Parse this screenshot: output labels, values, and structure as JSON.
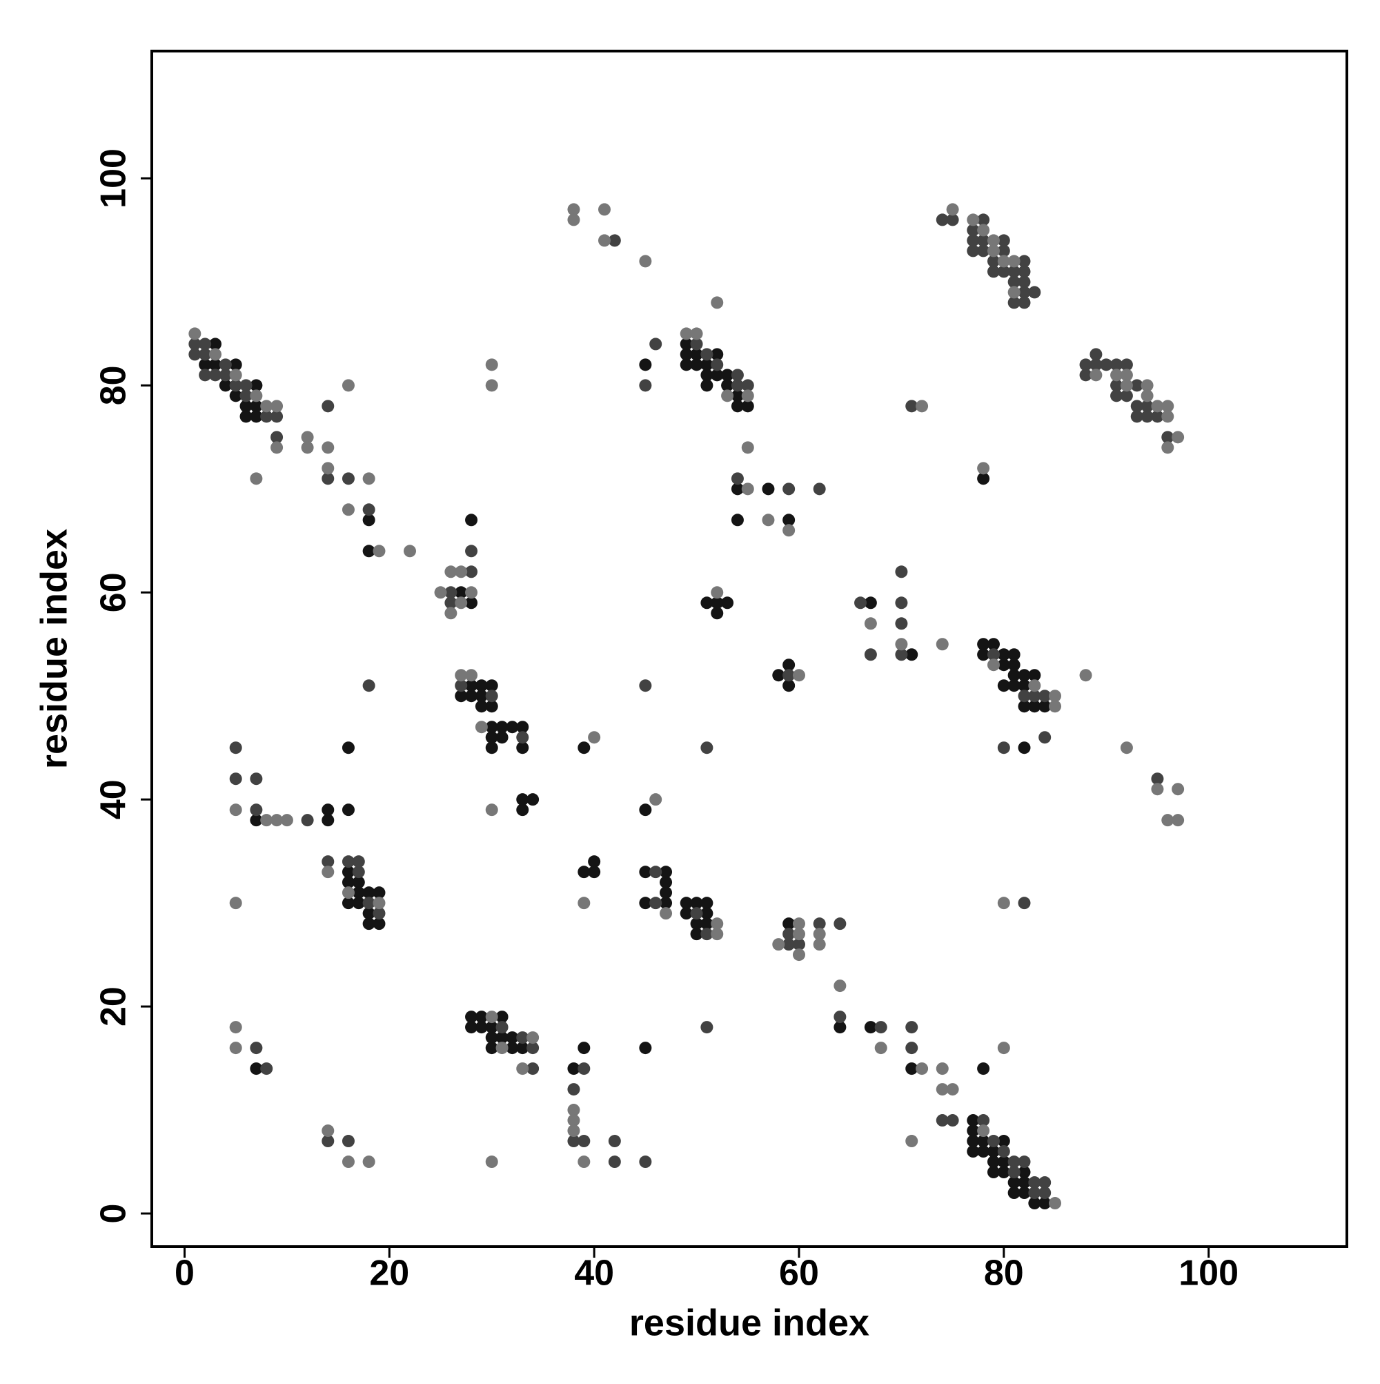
{
  "chart_data": {
    "type": "scatter",
    "x_label": "residue index",
    "y_label": "residue index",
    "xlim": [
      -3.2,
      113.5
    ],
    "ylim": [
      -3.2,
      112.3
    ],
    "xticks": [
      0,
      20,
      40,
      60,
      80,
      100
    ],
    "yticks": [
      0,
      20,
      40,
      60,
      80,
      100
    ],
    "grid": false,
    "series": [
      {
        "color": "#141414",
        "x": [
          2,
          3,
          3,
          4,
          5,
          5,
          6,
          6,
          7,
          7,
          7,
          18,
          18,
          27,
          28,
          28,
          27,
          28,
          28,
          29,
          29,
          29,
          30,
          30,
          30,
          30,
          30,
          31,
          31,
          32,
          33,
          33,
          33,
          33,
          34,
          7,
          14,
          14,
          16,
          16,
          16,
          16,
          16,
          17,
          17,
          17,
          18,
          18,
          18,
          19,
          19,
          7,
          28,
          28,
          29,
          29,
          30,
          30,
          30,
          31,
          31,
          32,
          32,
          33,
          38,
          39,
          45,
          39,
          39,
          40,
          40,
          45,
          45,
          45,
          47,
          47,
          47,
          47,
          49,
          49,
          50,
          50,
          50,
          51,
          51,
          51,
          59,
          64,
          67,
          71,
          78,
          77,
          77,
          77,
          77,
          78,
          78,
          79,
          79,
          79,
          80,
          80,
          80,
          81,
          81,
          82,
          82,
          82,
          83,
          84,
          45,
          49,
          49,
          49,
          50,
          50,
          51,
          51,
          51,
          52,
          52,
          53,
          53,
          54,
          54,
          55,
          54,
          54,
          57,
          59,
          51,
          52,
          52,
          53,
          58,
          59,
          59,
          67,
          71,
          78,
          78,
          78,
          79,
          80,
          80,
          80,
          81,
          81,
          81,
          81,
          82,
          82,
          82,
          83,
          83,
          84,
          82
        ],
        "y": [
          82,
          84,
          82,
          80,
          82,
          79,
          78,
          77,
          80,
          78,
          77,
          67,
          64,
          60,
          67,
          59,
          50,
          51,
          50,
          51,
          50,
          49,
          51,
          49,
          47,
          46,
          45,
          47,
          46,
          47,
          47,
          45,
          40,
          39,
          40,
          38,
          39,
          38,
          45,
          39,
          33,
          32,
          30,
          32,
          31,
          30,
          31,
          29,
          28,
          31,
          28,
          14,
          19,
          18,
          19,
          18,
          18,
          17,
          16,
          19,
          17,
          17,
          16,
          16,
          14,
          16,
          16,
          45,
          33,
          34,
          33,
          39,
          33,
          30,
          33,
          32,
          31,
          30,
          30,
          29,
          30,
          28,
          27,
          30,
          29,
          28,
          28,
          18,
          18,
          14,
          14,
          9,
          8,
          7,
          6,
          7,
          6,
          6,
          5,
          4,
          7,
          5,
          4,
          3,
          2,
          4,
          3,
          2,
          1,
          1,
          82,
          84,
          83,
          82,
          83,
          82,
          82,
          81,
          80,
          83,
          81,
          81,
          80,
          79,
          78,
          78,
          70,
          67,
          70,
          67,
          59,
          59,
          58,
          59,
          52,
          53,
          51,
          59,
          54,
          71,
          55,
          54,
          55,
          54,
          53,
          51,
          54,
          53,
          52,
          51,
          52,
          51,
          49,
          52,
          49,
          49,
          45
        ]
      },
      {
        "color": "#424242",
        "x": [
          1,
          1,
          2,
          2,
          2,
          3,
          4,
          4,
          5,
          6,
          6,
          8,
          9,
          9,
          14,
          14,
          16,
          18,
          26,
          26,
          28,
          28,
          27,
          30,
          33,
          18,
          5,
          5,
          7,
          7,
          12,
          14,
          16,
          17,
          17,
          18,
          19,
          7,
          8,
          14,
          16,
          31,
          33,
          34,
          34,
          38,
          38,
          39,
          39,
          42,
          42,
          45,
          45,
          46,
          46,
          50,
          51,
          51,
          51,
          59,
          59,
          60,
          62,
          64,
          64,
          68,
          71,
          71,
          74,
          75,
          78,
          79,
          80,
          81,
          81,
          82,
          83,
          83,
          84,
          84,
          82,
          46,
          45,
          50,
          51,
          52,
          54,
          54,
          55,
          54,
          59,
          62,
          59,
          66,
          67,
          70,
          70,
          70,
          70,
          71,
          79,
          82,
          83,
          84,
          84,
          80,
          95,
          74,
          75,
          77,
          77,
          77,
          78,
          78,
          78,
          79,
          79,
          80,
          80,
          80,
          81,
          81,
          81,
          82,
          82,
          82,
          82,
          82,
          83,
          42,
          88,
          88,
          89,
          89,
          90,
          91,
          91,
          91,
          92,
          92,
          93,
          93,
          93,
          94,
          94,
          95,
          96
        ],
        "y": [
          84,
          83,
          84,
          83,
          81,
          81,
          82,
          81,
          80,
          80,
          79,
          77,
          77,
          75,
          78,
          71,
          71,
          68,
          60,
          59,
          64,
          62,
          51,
          50,
          46,
          51,
          45,
          42,
          42,
          39,
          38,
          34,
          34,
          34,
          33,
          30,
          29,
          16,
          14,
          7,
          7,
          18,
          17,
          16,
          14,
          12,
          7,
          14,
          7,
          7,
          5,
          5,
          51,
          33,
          30,
          29,
          27,
          18,
          45,
          27,
          26,
          26,
          28,
          28,
          19,
          18,
          18,
          16,
          9,
          9,
          9,
          7,
          6,
          5,
          4,
          5,
          3,
          2,
          3,
          2,
          30,
          84,
          80,
          84,
          83,
          82,
          81,
          80,
          80,
          71,
          70,
          70,
          52,
          59,
          54,
          62,
          59,
          57,
          54,
          78,
          54,
          50,
          50,
          50,
          46,
          45,
          42,
          96,
          96,
          95,
          94,
          93,
          96,
          94,
          93,
          92,
          91,
          94,
          93,
          91,
          91,
          90,
          88,
          92,
          91,
          90,
          89,
          88,
          89,
          94,
          82,
          81,
          83,
          82,
          82,
          82,
          80,
          79,
          82,
          79,
          80,
          78,
          77,
          78,
          77,
          77,
          75
        ]
      },
      {
        "color": "#777777",
        "x": [
          1,
          3,
          5,
          7,
          8,
          9,
          9,
          7,
          12,
          12,
          14,
          14,
          16,
          16,
          18,
          19,
          22,
          25,
          26,
          26,
          27,
          27,
          28,
          30,
          30,
          27,
          28,
          29,
          30,
          5,
          8,
          9,
          10,
          14,
          16,
          19,
          5,
          5,
          5,
          14,
          16,
          18,
          30,
          30,
          31,
          33,
          34,
          38,
          38,
          38,
          39,
          40,
          39,
          46,
          47,
          52,
          52,
          58,
          60,
          60,
          60,
          62,
          62,
          64,
          68,
          72,
          74,
          74,
          75,
          71,
          80,
          78,
          85,
          80,
          49,
          50,
          52,
          53,
          55,
          55,
          55,
          57,
          59,
          52,
          60,
          67,
          70,
          74,
          72,
          78,
          79,
          83,
          85,
          85,
          88,
          92,
          95,
          97,
          96,
          97,
          75,
          77,
          78,
          79,
          79,
          80,
          81,
          81,
          38,
          38,
          41,
          41,
          45,
          89,
          91,
          92,
          92,
          94,
          94,
          95,
          96,
          96,
          96,
          97
        ],
        "y": [
          85,
          83,
          81,
          79,
          78,
          78,
          74,
          71,
          75,
          74,
          74,
          72,
          80,
          68,
          71,
          64,
          64,
          60,
          62,
          58,
          62,
          59,
          60,
          82,
          80,
          52,
          52,
          47,
          39,
          39,
          38,
          38,
          38,
          33,
          31,
          30,
          30,
          18,
          16,
          8,
          5,
          5,
          5,
          19,
          16,
          14,
          17,
          10,
          9,
          8,
          5,
          46,
          30,
          40,
          29,
          28,
          27,
          26,
          28,
          27,
          25,
          27,
          26,
          22,
          16,
          14,
          14,
          12,
          12,
          7,
          16,
          8,
          1,
          30,
          85,
          85,
          88,
          79,
          79,
          74,
          70,
          67,
          66,
          60,
          52,
          57,
          55,
          55,
          78,
          72,
          53,
          51,
          50,
          49,
          52,
          45,
          41,
          41,
          38,
          38,
          97,
          96,
          95,
          94,
          93,
          92,
          92,
          89,
          97,
          96,
          97,
          94,
          92,
          81,
          81,
          81,
          80,
          80,
          79,
          78,
          78,
          77,
          74,
          75
        ]
      }
    ]
  }
}
